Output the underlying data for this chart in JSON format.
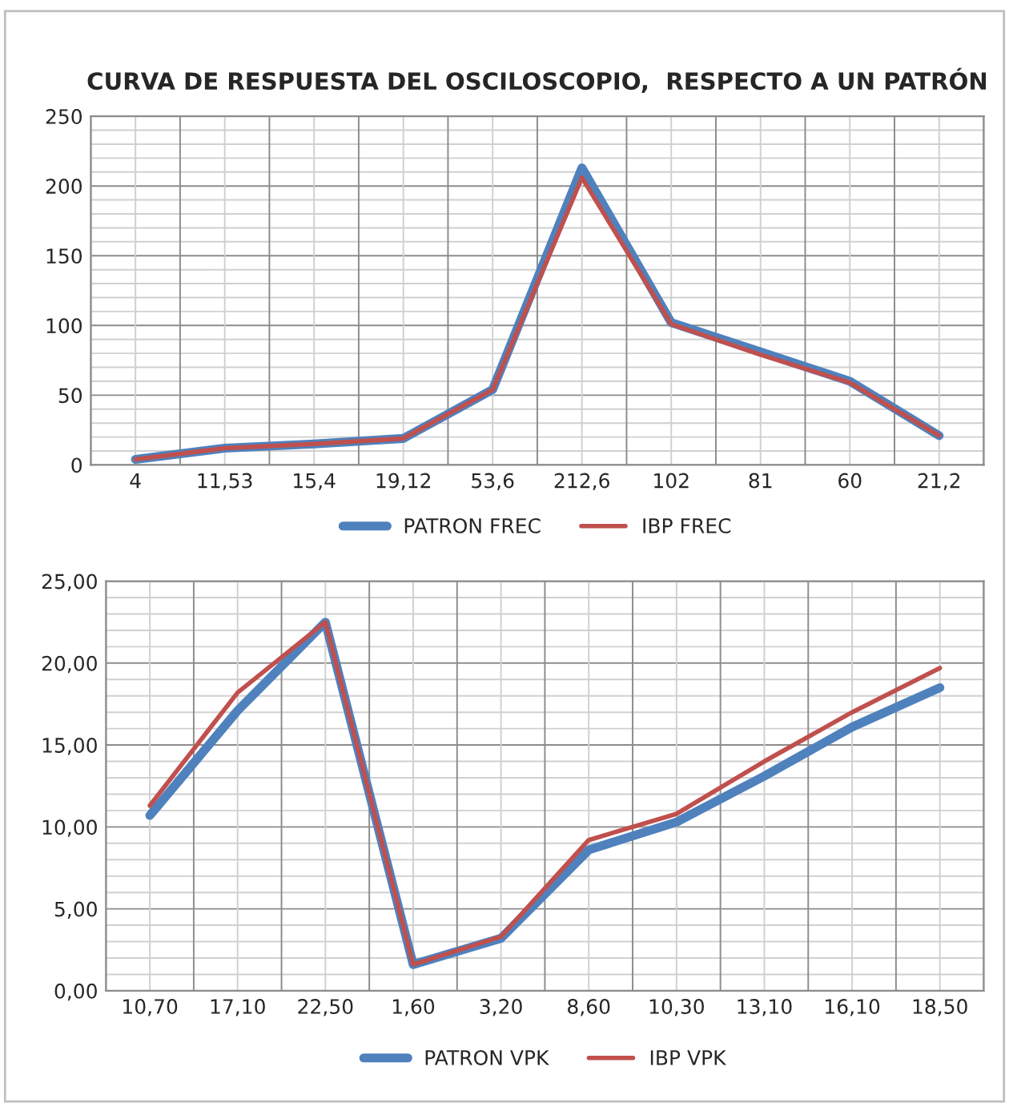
{
  "chart_data": [
    {
      "type": "line",
      "title": "CURVA DE RESPUESTA DEL OSCILOSCOPIO,  RESPECTO A UN PATRÓN",
      "categories": [
        "4",
        "11,53",
        "15,4",
        "19,12",
        "53,6",
        "212,6",
        "102",
        "81",
        "60",
        "21,2"
      ],
      "series": [
        {
          "name": "PATRON FREC",
          "color": "#4f81bd",
          "values": [
            4,
            12,
            15,
            19,
            54,
            213,
            102,
            81,
            60,
            21
          ]
        },
        {
          "name": "IBP FREC",
          "color": "#c0504d",
          "values": [
            4,
            12,
            15,
            19,
            54,
            206,
            101,
            79,
            59,
            21
          ]
        }
      ],
      "ylim": [
        0,
        250
      ],
      "yticks": [
        0,
        50,
        100,
        150,
        200,
        250
      ],
      "grid": true,
      "legend": "bottom",
      "marker": "none",
      "line_style": "solid"
    },
    {
      "type": "line",
      "categories": [
        "10,70",
        "17,10",
        "22,50",
        "1,60",
        "3,20",
        "8,60",
        "10,30",
        "13,10",
        "16,10",
        "18,50"
      ],
      "series": [
        {
          "name": "PATRON VPK",
          "color": "#4f81bd",
          "values": [
            10.7,
            17.1,
            22.5,
            1.6,
            3.2,
            8.6,
            10.3,
            13.1,
            16.1,
            18.5
          ]
        },
        {
          "name": "IBP VPK",
          "color": "#c0504d",
          "values": [
            11.3,
            18.2,
            22.5,
            1.6,
            3.3,
            9.2,
            10.8,
            14.0,
            17.0,
            19.7
          ]
        }
      ],
      "ylim": [
        0,
        25
      ],
      "yticks": [
        {
          "value": 0,
          "label": "0,00"
        },
        {
          "value": 5,
          "label": "5,00"
        },
        {
          "value": 10,
          "label": "10,00"
        },
        {
          "value": 15,
          "label": "15,00"
        },
        {
          "value": 20,
          "label": "20,00"
        },
        {
          "value": 25,
          "label": "25,00"
        }
      ],
      "grid": true,
      "legend": "bottom",
      "marker": "none",
      "line_style": "solid"
    }
  ]
}
